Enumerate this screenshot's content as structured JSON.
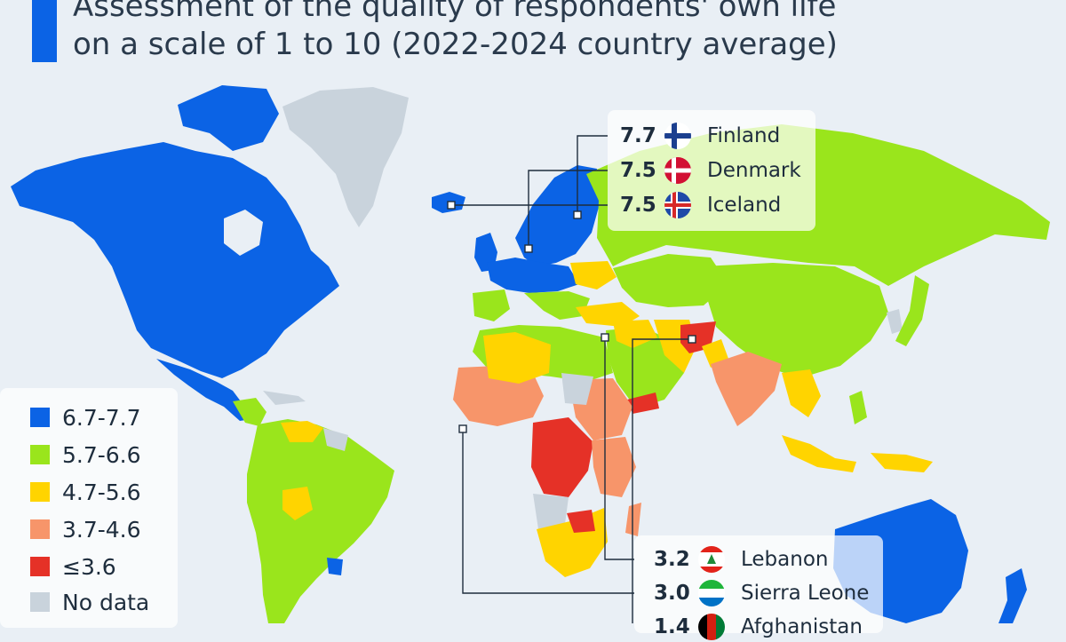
{
  "header": {
    "title_line1": "Assessment of the quality of respondents' own life",
    "title_line2": "on a scale of 1 to 10 (2022-2024 country average)"
  },
  "colors": {
    "band_6_7_7_7": "#0b63e5",
    "band_5_7_6_6": "#9ae51c",
    "band_4_7_5_6": "#ffd400",
    "band_3_7_4_6": "#f7956a",
    "band_le_3_6": "#e53127",
    "no_data": "#c9d3dc",
    "ocean": "#e9eff5",
    "leader_line": "#1e2d3d"
  },
  "legend": {
    "items": [
      {
        "label": "6.7-7.7",
        "color": "#0b63e5"
      },
      {
        "label": "5.7-6.6",
        "color": "#9ae51c"
      },
      {
        "label": "4.7-5.6",
        "color": "#ffd400"
      },
      {
        "label": "3.7-4.6",
        "color": "#f7956a"
      },
      {
        "label": "≤3.6",
        "color": "#e53127"
      },
      {
        "label": "No data",
        "color": "#c9d3dc"
      }
    ]
  },
  "callouts": {
    "top": [
      {
        "value": "7.7",
        "country": "Finland",
        "flag": "finland-flag-icon"
      },
      {
        "value": "7.5",
        "country": "Denmark",
        "flag": "denmark-flag-icon"
      },
      {
        "value": "7.5",
        "country": "Iceland",
        "flag": "iceland-flag-icon"
      }
    ],
    "bottom": [
      {
        "value": "3.2",
        "country": "Lebanon",
        "flag": "lebanon-flag-icon"
      },
      {
        "value": "3.0",
        "country": "Sierra Leone",
        "flag": "sierra-leone-flag-icon"
      },
      {
        "value": "1.4",
        "country": "Afghanistan",
        "flag": "afghanistan-flag-icon"
      }
    ]
  }
}
